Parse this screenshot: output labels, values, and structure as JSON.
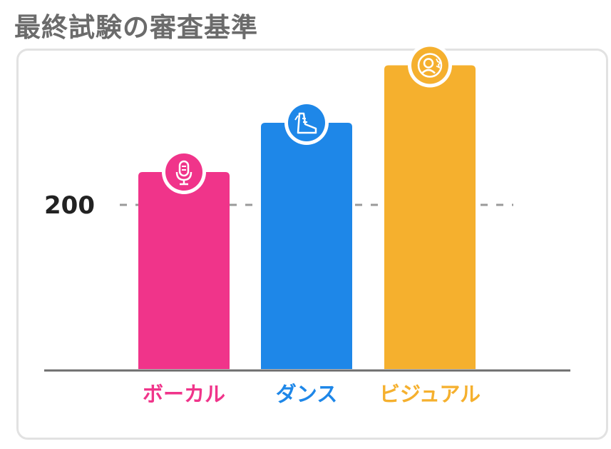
{
  "title": "最終試験の審査基準",
  "chart_data": {
    "type": "bar",
    "categories": [
      "ボーカル",
      "ダンス",
      "ビジュアル"
    ],
    "values": [
      240,
      300,
      370
    ],
    "reference_line": 200,
    "ylim": [
      0,
      380
    ],
    "yticks": [
      "200"
    ],
    "title": "",
    "xlabel": "",
    "ylabel": "",
    "grid": false,
    "colors": [
      "#f0348a",
      "#1e87e8",
      "#f5b02e"
    ],
    "icons": [
      "microphone-icon",
      "dance-shoe-icon",
      "star-person-icon"
    ]
  }
}
